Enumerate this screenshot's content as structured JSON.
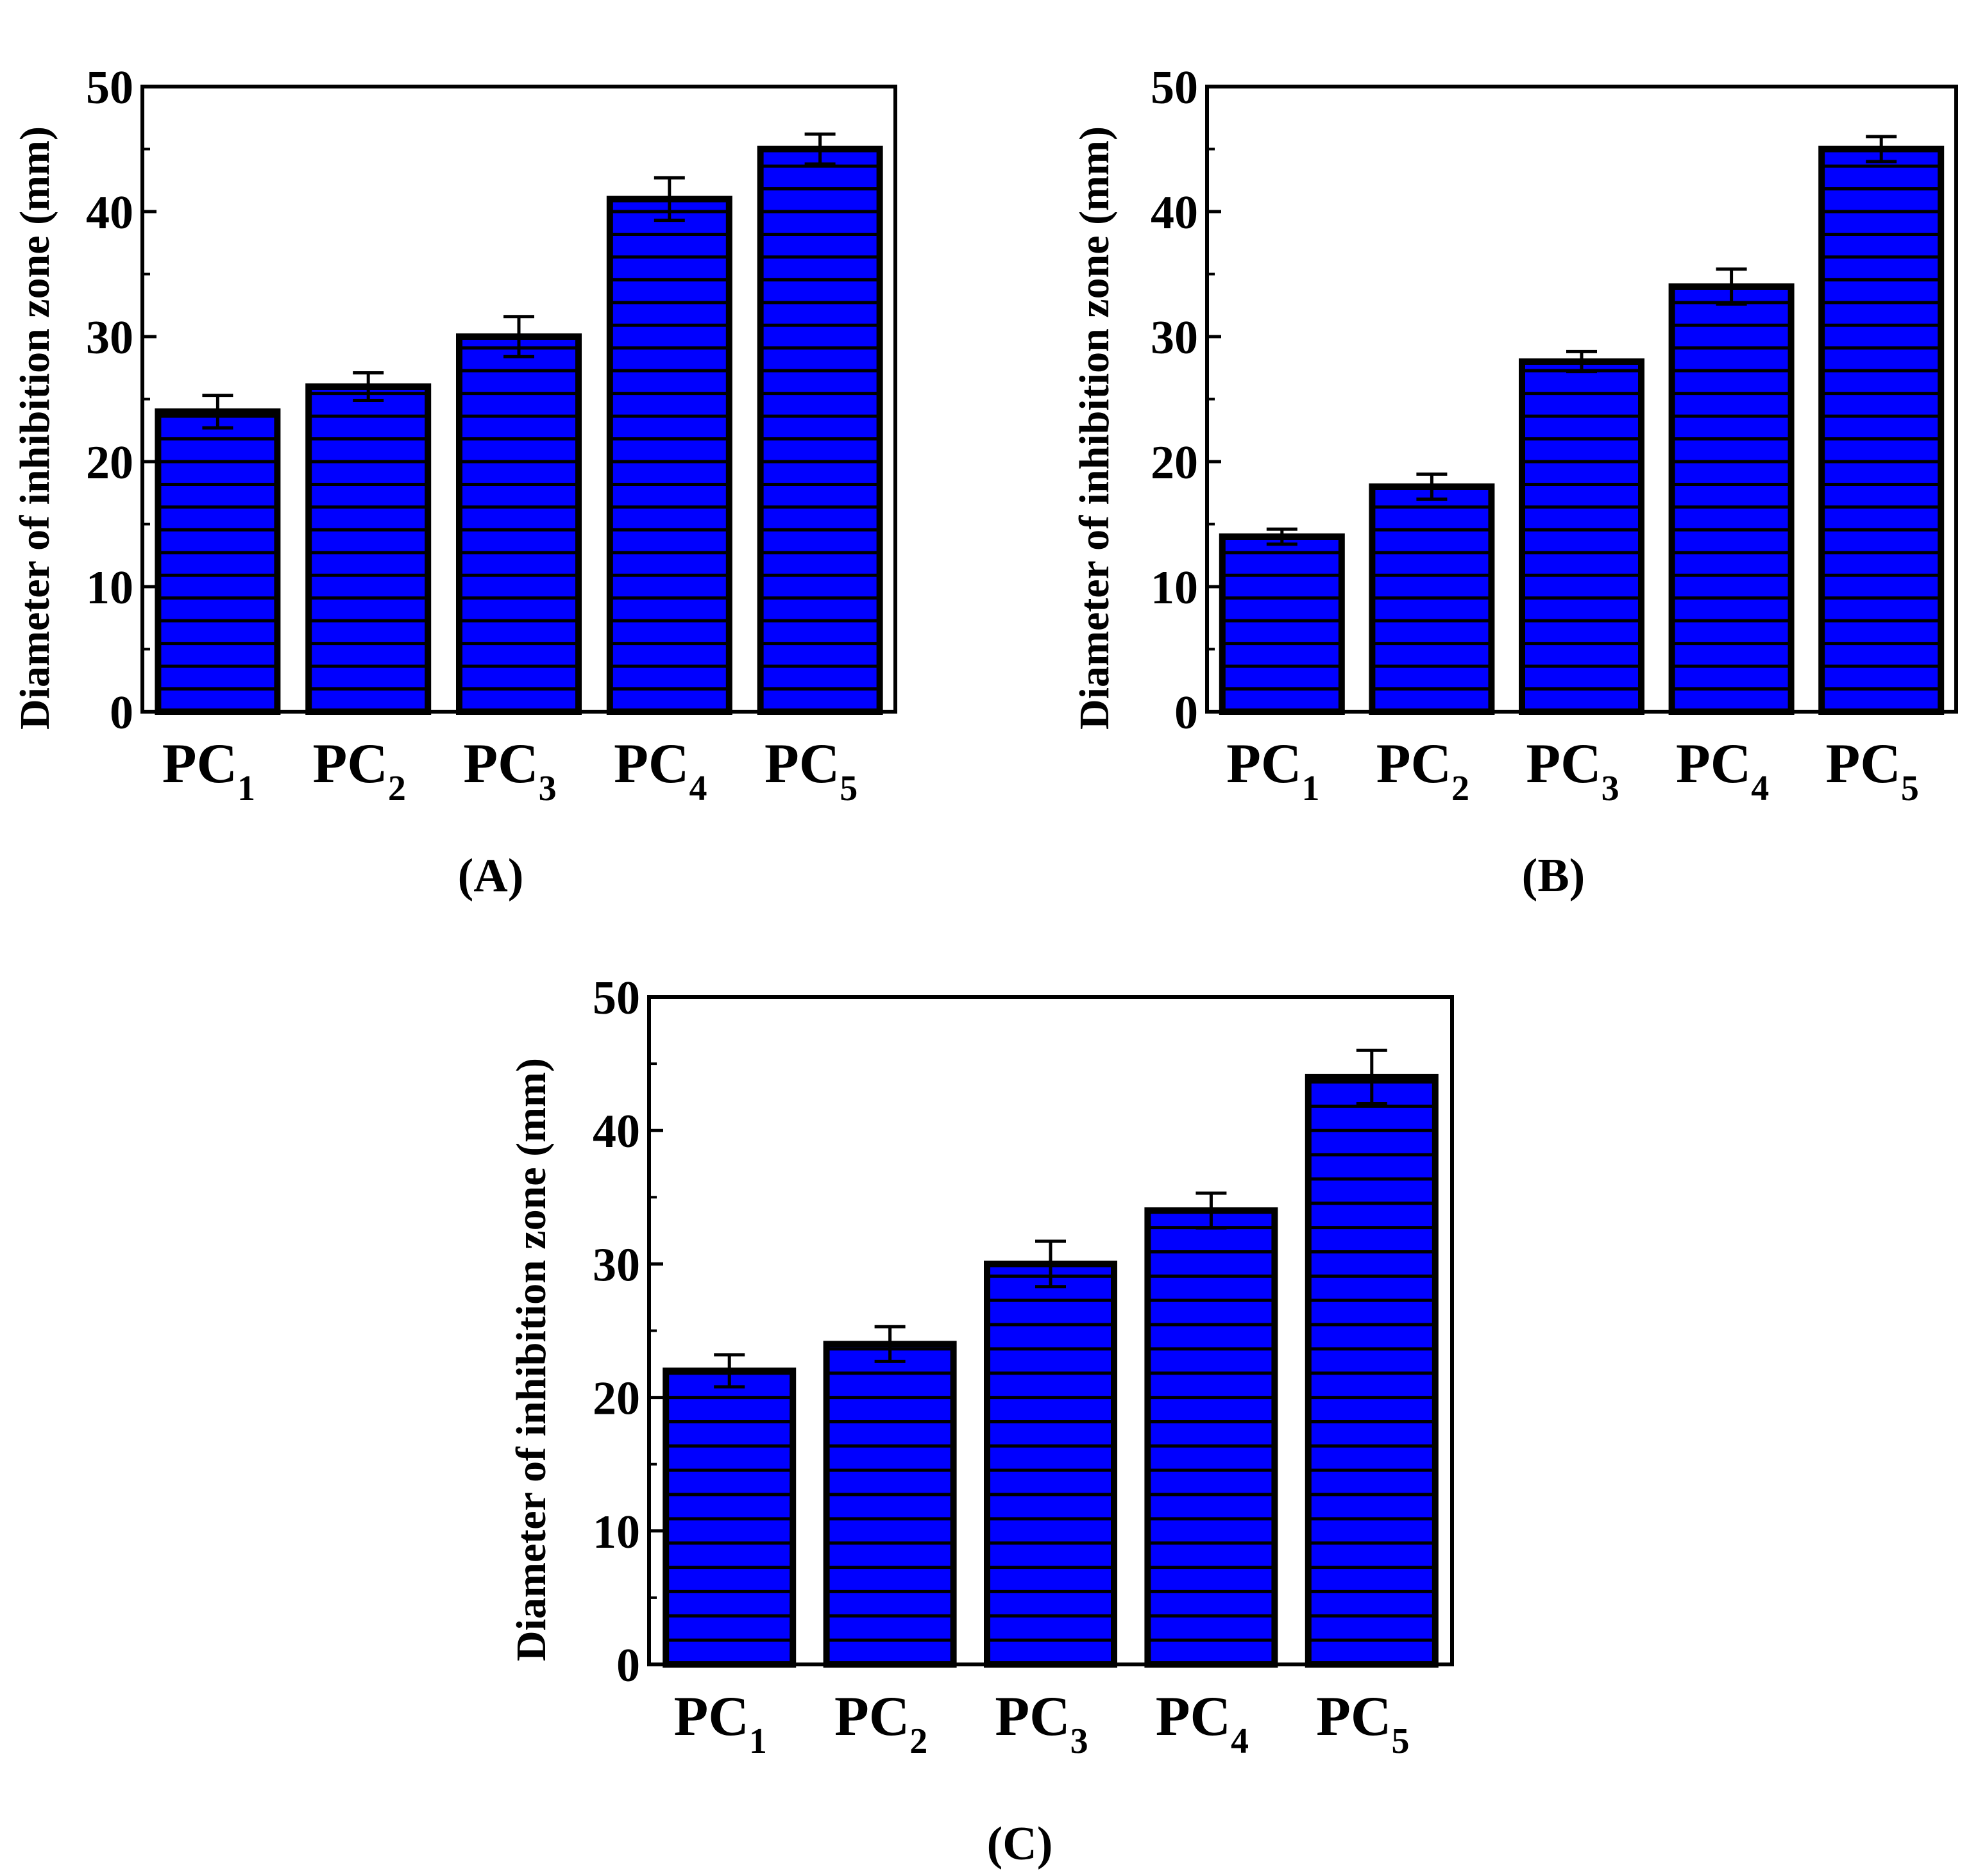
{
  "figure": {
    "bar_color": "#0000FF",
    "stripe_color": "#000000",
    "axis_color": "#000000"
  },
  "chart_data": [
    {
      "type": "bar",
      "panel_label": "(A)",
      "ylabel": "Diameter of inhibition zone (mm)",
      "xlabel": "",
      "categories": [
        {
          "base": "PC",
          "sub": "1"
        },
        {
          "base": "PC",
          "sub": "2"
        },
        {
          "base": "PC",
          "sub": "3"
        },
        {
          "base": "PC",
          "sub": "4"
        },
        {
          "base": "PC",
          "sub": "5"
        }
      ],
      "values": [
        24,
        26,
        30,
        41,
        45
      ],
      "errors": [
        1.3,
        1.1,
        1.6,
        1.7,
        1.2
      ],
      "ylim": [
        0,
        50
      ],
      "yticks": [
        0,
        10,
        20,
        30,
        40,
        50
      ],
      "grid": false
    },
    {
      "type": "bar",
      "panel_label": "(B)",
      "ylabel": "Diameter of inhibition zone (mm)",
      "xlabel": "",
      "categories": [
        {
          "base": "PC",
          "sub": "1"
        },
        {
          "base": "PC",
          "sub": "2"
        },
        {
          "base": "PC",
          "sub": "3"
        },
        {
          "base": "PC",
          "sub": "4"
        },
        {
          "base": "PC",
          "sub": "5"
        }
      ],
      "values": [
        14,
        18,
        28,
        34,
        45
      ],
      "errors": [
        0.6,
        1.0,
        0.8,
        1.4,
        1.0
      ],
      "ylim": [
        0,
        50
      ],
      "yticks": [
        0,
        10,
        20,
        30,
        40,
        50
      ],
      "grid": false
    },
    {
      "type": "bar",
      "panel_label": "(C)",
      "ylabel": "Diameter of inhibition zone (mm)",
      "xlabel": "",
      "categories": [
        {
          "base": "PC",
          "sub": "1"
        },
        {
          "base": "PC",
          "sub": "2"
        },
        {
          "base": "PC",
          "sub": "3"
        },
        {
          "base": "PC",
          "sub": "4"
        },
        {
          "base": "PC",
          "sub": "5"
        }
      ],
      "values": [
        22,
        24,
        30,
        34,
        44
      ],
      "errors": [
        1.2,
        1.3,
        1.7,
        1.3,
        2.0
      ],
      "ylim": [
        0,
        50
      ],
      "yticks": [
        0,
        10,
        20,
        30,
        40,
        50
      ],
      "grid": false
    }
  ]
}
